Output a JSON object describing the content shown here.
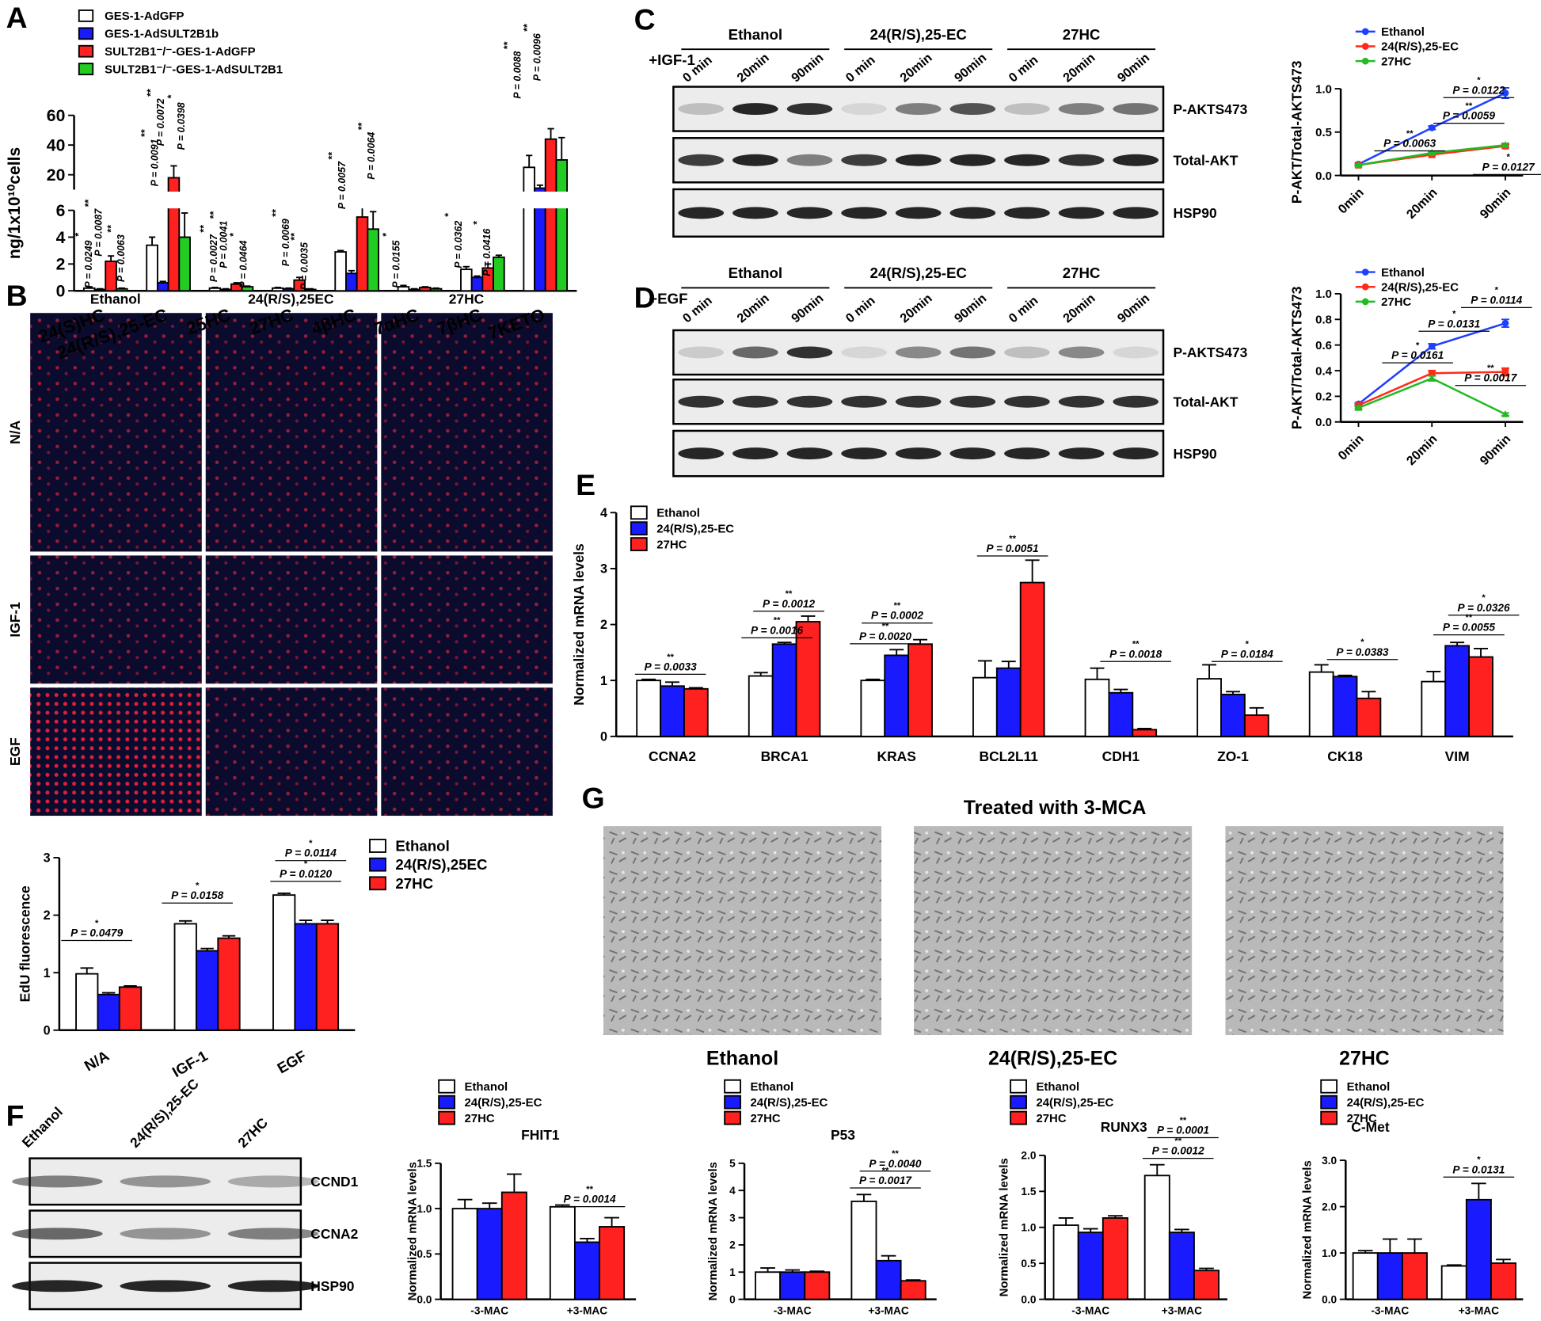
{
  "panels": [
    "A",
    "B",
    "C",
    "D",
    "E",
    "F",
    "G"
  ],
  "micrographs": {
    "columns": [
      "Ethanol",
      "24(R/S),25EC",
      "27HC"
    ],
    "rows": [
      "N/A",
      "IGF-1",
      "EGF"
    ]
  },
  "blot_c": {
    "treatment": "+IGF-1",
    "groups": [
      "Ethanol",
      "24(R/S),25-EC",
      "27HC"
    ],
    "times": [
      "0 min",
      "20min",
      "90min"
    ],
    "rows": [
      "P-AKTS473",
      "Total-AKT",
      "HSP90"
    ]
  },
  "blot_d": {
    "treatment": "+EGF",
    "groups": [
      "Ethanol",
      "24(R/S),25-EC",
      "27HC"
    ],
    "times": [
      "0 min",
      "20min",
      "90min"
    ],
    "rows": [
      "P-AKTS473",
      "Total-AKT",
      "HSP90"
    ]
  },
  "blot_f": {
    "lanes": [
      "Ethanol",
      "24(R/S),25-EC",
      "27HC"
    ],
    "rows": [
      "CCND1",
      "CCNA2",
      "HSP90"
    ]
  },
  "phase_contrast": {
    "title": "Treated with 3-MCA",
    "captions": [
      "Ethanol",
      "24(R/S),25-EC",
      "27HC"
    ]
  },
  "chart_data": [
    {
      "type": "bar",
      "y_label": "ng/1x10¹⁰cells",
      "categories": [
        "24(S)HC",
        "24(R/S),25-EC",
        "25HC",
        "27HC",
        "4βHC",
        "7αHC",
        "7βHC",
        "7KETO"
      ],
      "ylim": [
        0,
        60
      ],
      "ybreak": [
        6,
        10
      ],
      "yticks": [
        0,
        2,
        4,
        6,
        20,
        40,
        60
      ],
      "series": [
        {
          "name": "GES-1-AdGFP",
          "color": "#ffffff",
          "values": [
            0.2,
            3.4,
            0.2,
            0.2,
            2.9,
            0.3,
            1.6,
            25
          ],
          "errors": [
            0.1,
            0.6,
            0.05,
            0.05,
            0.1,
            0.1,
            0.2,
            8
          ]
        },
        {
          "name": "GES-1-AdSULT2B1b",
          "color": "#1a1aff",
          "values": [
            0.1,
            0.6,
            0.1,
            0.15,
            1.3,
            0.1,
            1.0,
            11
          ],
          "errors": [
            0.05,
            0.1,
            0.05,
            0.05,
            0.2,
            0.05,
            0.1,
            2
          ]
        },
        {
          "name": "SULT2B1⁻/⁻-GES-1-AdGFP",
          "color": "#ff2020",
          "values": [
            2.2,
            18,
            0.5,
            0.8,
            5.5,
            0.25,
            1.7,
            44
          ],
          "errors": [
            0.4,
            8,
            0.1,
            0.2,
            0.6,
            0.05,
            0.3,
            7
          ]
        },
        {
          "name": "SULT2B1⁻/⁻-GES-1-AdSULT2B1",
          "color": "#22cc22",
          "values": [
            0.15,
            4.0,
            0.3,
            0.1,
            4.6,
            0.15,
            2.5,
            30
          ],
          "errors": [
            0.05,
            1.8,
            0.05,
            0.05,
            1.3,
            0.05,
            0.15,
            15
          ]
        }
      ],
      "annotations": [
        {
          "label": "P = 0.0249",
          "stars": "*"
        },
        {
          "label": "P = 0.0087",
          "stars": "**"
        },
        {
          "label": "P = 0.0063",
          "stars": "**"
        },
        {
          "label": "P = 0.0091",
          "stars": "**"
        },
        {
          "label": "P = 0.0072",
          "stars": "**"
        },
        {
          "label": "P = 0.0398",
          "stars": "*"
        },
        {
          "label": "P = 0.0027",
          "stars": "**"
        },
        {
          "label": "P = 0.0041",
          "stars": "**"
        },
        {
          "label": "P = 0.0464",
          "stars": "*"
        },
        {
          "label": "P = 0.0069",
          "stars": "**"
        },
        {
          "label": "P = 0.0035",
          "stars": "**"
        },
        {
          "label": "P = 0.0057",
          "stars": "**"
        },
        {
          "label": "P = 0.0064",
          "stars": "**"
        },
        {
          "label": "P = 0.0155",
          "stars": "*"
        },
        {
          "label": "P = 0.0362",
          "stars": "*"
        },
        {
          "label": "P = 0.0416",
          "stars": "*"
        },
        {
          "label": "P = 0.0088",
          "stars": "**"
        },
        {
          "label": "P = 0.0096",
          "stars": "**"
        }
      ]
    },
    {
      "type": "line",
      "y_label": "P-AKT/Total-AKTS473",
      "categories": [
        "0min",
        "20min",
        "90min"
      ],
      "ylim": [
        0,
        1
      ],
      "yticks": [
        {
          "value": 0,
          "label": "0.0"
        },
        0.5,
        {
          "value": 1,
          "label": "1.0"
        }
      ],
      "series": [
        {
          "name": "Ethanol",
          "color": "#1f3fff",
          "values": [
            0.13,
            0.55,
            0.95
          ],
          "errors": [
            0.01,
            0.02,
            0.06
          ]
        },
        {
          "name": "24(R/S),25-EC",
          "color": "#ff2a1a",
          "values": [
            0.12,
            0.24,
            0.34
          ],
          "errors": [
            0.01,
            0.01,
            0.02
          ]
        },
        {
          "name": "27HC",
          "color": "#22bb22",
          "values": [
            0.12,
            0.26,
            0.35
          ],
          "errors": [
            0.01,
            0.01,
            0.02
          ]
        }
      ],
      "annotations": [
        {
          "label": "P = 0.0122",
          "stars": "*"
        },
        {
          "label": "P = 0.0059",
          "stars": "**"
        },
        {
          "label": "P = 0.0063",
          "stars": "**"
        },
        {
          "label": "P = 0.0127",
          "stars": "*"
        }
      ]
    },
    {
      "type": "line",
      "y_label": "P-AKT/Total-AKTS473",
      "categories": [
        "0min",
        "20min",
        "90min"
      ],
      "ylim": [
        0,
        1
      ],
      "yticks": [
        {
          "value": 0,
          "label": "0.0"
        },
        0.2,
        0.4,
        0.6,
        0.8,
        {
          "value": 1,
          "label": "1.0"
        }
      ],
      "series": [
        {
          "name": "Ethanol",
          "color": "#1f3fff",
          "values": [
            0.14,
            0.59,
            0.77
          ],
          "errors": [
            0.01,
            0.02,
            0.03
          ]
        },
        {
          "name": "24(R/S),25-EC",
          "color": "#ff2a1a",
          "values": [
            0.13,
            0.38,
            0.39
          ],
          "errors": [
            0.01,
            0.02,
            0.03
          ]
        },
        {
          "name": "27HC",
          "color": "#22bb22",
          "values": [
            0.11,
            0.34,
            0.06
          ],
          "errors": [
            0.01,
            0.02,
            0.01
          ]
        }
      ],
      "annotations": [
        {
          "label": "P = 0.0114",
          "stars": "*"
        },
        {
          "label": "P = 0.0131",
          "stars": "*"
        },
        {
          "label": "P = 0.0161",
          "stars": "*"
        },
        {
          "label": "P = 0.0017",
          "stars": "**"
        }
      ]
    },
    {
      "type": "bar",
      "y_label": "Normalized mRNA levels",
      "categories": [
        "CCNA2",
        "BRCA1",
        "KRAS",
        "BCL2L11",
        "CDH1",
        "ZO-1",
        "CK18",
        "VIM"
      ],
      "ylim": [
        0,
        4
      ],
      "yticks": [
        0,
        1,
        2,
        3,
        4
      ],
      "series": [
        {
          "name": "Ethanol",
          "color": "#ffffff",
          "values": [
            1.0,
            1.08,
            1.0,
            1.05,
            1.02,
            1.03,
            1.15,
            0.98
          ],
          "errors": [
            0.02,
            0.06,
            0.02,
            0.3,
            0.2,
            0.25,
            0.13,
            0.18
          ]
        },
        {
          "name": "24(R/S),25-EC",
          "color": "#1a1aff",
          "values": [
            0.9,
            1.65,
            1.45,
            1.22,
            0.78,
            0.75,
            1.07,
            1.62
          ],
          "errors": [
            0.07,
            0.03,
            0.1,
            0.12,
            0.06,
            0.05,
            0.02,
            0.06
          ]
        },
        {
          "name": "27HC",
          "color": "#ff2020",
          "values": [
            0.85,
            2.05,
            1.65,
            2.75,
            0.12,
            0.38,
            0.68,
            1.42
          ],
          "errors": [
            0.02,
            0.1,
            0.08,
            0.4,
            0.02,
            0.13,
            0.12,
            0.15
          ]
        }
      ],
      "annotations": [
        {
          "label": "P = 0.0033",
          "stars": "**"
        },
        {
          "label": "P = 0.0012",
          "stars": "**"
        },
        {
          "label": "P = 0.0016",
          "stars": "**"
        },
        {
          "label": "P = 0.0002",
          "stars": "**"
        },
        {
          "label": "P = 0.0020",
          "stars": "**"
        },
        {
          "label": "P = 0.0051",
          "stars": "**"
        },
        {
          "label": "P = 0.0018",
          "stars": "**"
        },
        {
          "label": "P = 0.0184",
          "stars": "*"
        },
        {
          "label": "P = 0.0383",
          "stars": "*"
        },
        {
          "label": "P = 0.0326",
          "stars": "*"
        },
        {
          "label": "P = 0.0055",
          "stars": "**"
        }
      ]
    },
    {
      "type": "bar",
      "y_label": "EdU fluorescence",
      "categories": [
        "N/A",
        "IGF-1",
        "EGF"
      ],
      "ylim": [
        0,
        3
      ],
      "yticks": [
        0,
        1,
        2,
        3
      ],
      "series": [
        {
          "name": "Ethanol",
          "color": "#ffffff",
          "values": [
            0.98,
            1.85,
            2.35
          ],
          "errors": [
            0.1,
            0.05,
            0.03
          ]
        },
        {
          "name": "24(R/S),25EC",
          "color": "#1a1aff",
          "values": [
            0.62,
            1.38,
            1.85
          ],
          "errors": [
            0.03,
            0.04,
            0.06
          ]
        },
        {
          "name": "27HC",
          "color": "#ff2020",
          "values": [
            0.75,
            1.6,
            1.85
          ],
          "errors": [
            0.02,
            0.04,
            0.06
          ]
        }
      ],
      "annotations": [
        {
          "label": "P = 0.0479",
          "stars": "*"
        },
        {
          "label": "P = 0.0158",
          "stars": "*"
        },
        {
          "label": "P = 0.0120",
          "stars": "*"
        },
        {
          "label": "P = 0.0114",
          "stars": "*"
        }
      ]
    },
    {
      "type": "bar",
      "title": "FHIT1",
      "y_label": "Normalized mRNA levels",
      "categories": [
        "-3-MAC",
        "+3-MAC"
      ],
      "ylim": [
        0,
        1.5
      ],
      "yticks": [
        {
          "value": 0,
          "label": "0.0"
        },
        0.5,
        {
          "value": 1,
          "label": "1.0"
        },
        1.5
      ],
      "series": [
        {
          "name": "Ethanol",
          "color": "#ffffff",
          "values": [
            1.0,
            1.02
          ],
          "errors": [
            0.1,
            0.02
          ]
        },
        {
          "name": "24(R/S),25-EC",
          "color": "#1a1aff",
          "values": [
            1.0,
            0.63
          ],
          "errors": [
            0.06,
            0.04
          ]
        },
        {
          "name": "27HC",
          "color": "#ff2020",
          "values": [
            1.18,
            0.8
          ],
          "errors": [
            0.2,
            0.1
          ]
        }
      ],
      "annotations": [
        {
          "label": "P = 0.0014",
          "stars": "**"
        }
      ]
    },
    {
      "type": "bar",
      "title": "P53",
      "y_label": "Normalized mRNA levels",
      "categories": [
        "-3-MAC",
        "+3-MAC"
      ],
      "ylim": [
        0,
        5
      ],
      "yticks": [
        0,
        1,
        2,
        3,
        4,
        5
      ],
      "series": [
        {
          "name": "Ethanol",
          "color": "#ffffff",
          "values": [
            1.0,
            3.6
          ],
          "errors": [
            0.15,
            0.25
          ]
        },
        {
          "name": "24(R/S),25-EC",
          "color": "#1a1aff",
          "values": [
            1.0,
            1.42
          ],
          "errors": [
            0.08,
            0.18
          ]
        },
        {
          "name": "27HC",
          "color": "#ff2020",
          "values": [
            1.0,
            0.68
          ],
          "errors": [
            0.03,
            0.03
          ]
        }
      ],
      "annotations": [
        {
          "label": "P = 0.0040",
          "stars": "**"
        },
        {
          "label": "P = 0.0017",
          "stars": "**"
        }
      ]
    },
    {
      "type": "bar",
      "title": "RUNX3",
      "y_label": "Normalized mRNA levels",
      "categories": [
        "-3-MAC",
        "+3-MAC"
      ],
      "ylim": [
        0,
        2
      ],
      "yticks": [
        {
          "value": 0,
          "label": "0.0"
        },
        0.5,
        {
          "value": 1,
          "label": "1.0"
        },
        1.5,
        {
          "value": 2,
          "label": "2.0"
        }
      ],
      "series": [
        {
          "name": "Ethanol",
          "color": "#ffffff",
          "values": [
            1.03,
            1.72
          ],
          "errors": [
            0.1,
            0.15
          ]
        },
        {
          "name": "24(R/S),25-EC",
          "color": "#1a1aff",
          "values": [
            0.93,
            0.93
          ],
          "errors": [
            0.05,
            0.04
          ]
        },
        {
          "name": "27HC",
          "color": "#ff2020",
          "values": [
            1.13,
            0.4
          ],
          "errors": [
            0.03,
            0.03
          ]
        }
      ],
      "annotations": [
        {
          "label": "P = 0.0001",
          "stars": "**"
        },
        {
          "label": "P = 0.0012",
          "stars": "**"
        }
      ]
    },
    {
      "type": "bar",
      "title": "C-Met",
      "y_label": "Normalized mRNA levels",
      "categories": [
        "-3-MAC",
        "+3-MAC"
      ],
      "ylim": [
        0,
        3
      ],
      "yticks": [
        {
          "value": 0,
          "label": "0.0"
        },
        {
          "value": 1,
          "label": "1.0"
        },
        {
          "value": 2,
          "label": "2.0"
        },
        {
          "value": 3,
          "label": "3.0"
        }
      ],
      "series": [
        {
          "name": "Ethanol",
          "color": "#ffffff",
          "values": [
            1.0,
            0.72
          ],
          "errors": [
            0.05,
            0.02
          ]
        },
        {
          "name": "24(R/S),25-EC",
          "color": "#1a1aff",
          "values": [
            1.0,
            2.15
          ],
          "errors": [
            0.3,
            0.35
          ]
        },
        {
          "name": "27HC",
          "color": "#ff2020",
          "values": [
            1.0,
            0.78
          ],
          "errors": [
            0.3,
            0.08
          ]
        }
      ],
      "annotations": [
        {
          "label": "P = 0.0131",
          "stars": "*"
        }
      ]
    }
  ]
}
